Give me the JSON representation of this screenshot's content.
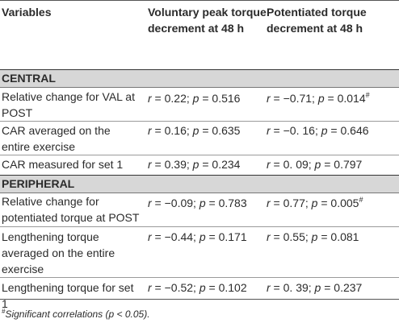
{
  "header": {
    "variables": "Variables",
    "col_voluntary": "Voluntary peak torque decrement at 48 h",
    "col_potentiated": "Potentiated torque decrement at 48 h"
  },
  "sections": [
    {
      "title": "CENTRAL",
      "rows": [
        {
          "variable": "Relative change for VAL at POST",
          "voluntary": "r = 0.22; p = 0.516",
          "potentiated": "r = −0.71; p = 0.014",
          "potentiated_mark": "#"
        },
        {
          "variable": "CAR averaged on the entire exercise",
          "voluntary": "r = 0.16; p = 0.635",
          "potentiated": "r = −0. 16; p = 0.646",
          "potentiated_mark": ""
        },
        {
          "variable": "CAR measured for set 1",
          "voluntary": "r = 0.39; p = 0.234",
          "potentiated": "r = 0. 09; p = 0.797",
          "potentiated_mark": ""
        }
      ]
    },
    {
      "title": "PERIPHERAL",
      "rows": [
        {
          "variable": "Relative change for potentiated torque at POST",
          "voluntary": "r = −0.09; p = 0.783",
          "potentiated": "r = 0.77; p = 0.005",
          "potentiated_mark": "#"
        },
        {
          "variable": "Lengthening torque averaged on the entire exercise",
          "voluntary": "r = −0.44; p = 0.171",
          "potentiated": "r = 0.55; p = 0.081",
          "potentiated_mark": ""
        },
        {
          "variable": "Lengthening torque for set 1",
          "voluntary": "r = −0.52; p = 0.102",
          "potentiated": "r = 0. 39; p = 0.237",
          "potentiated_mark": ""
        }
      ]
    }
  ],
  "footnote": {
    "mark": "#",
    "text": "Significant correlations (p < 0.05)."
  }
}
